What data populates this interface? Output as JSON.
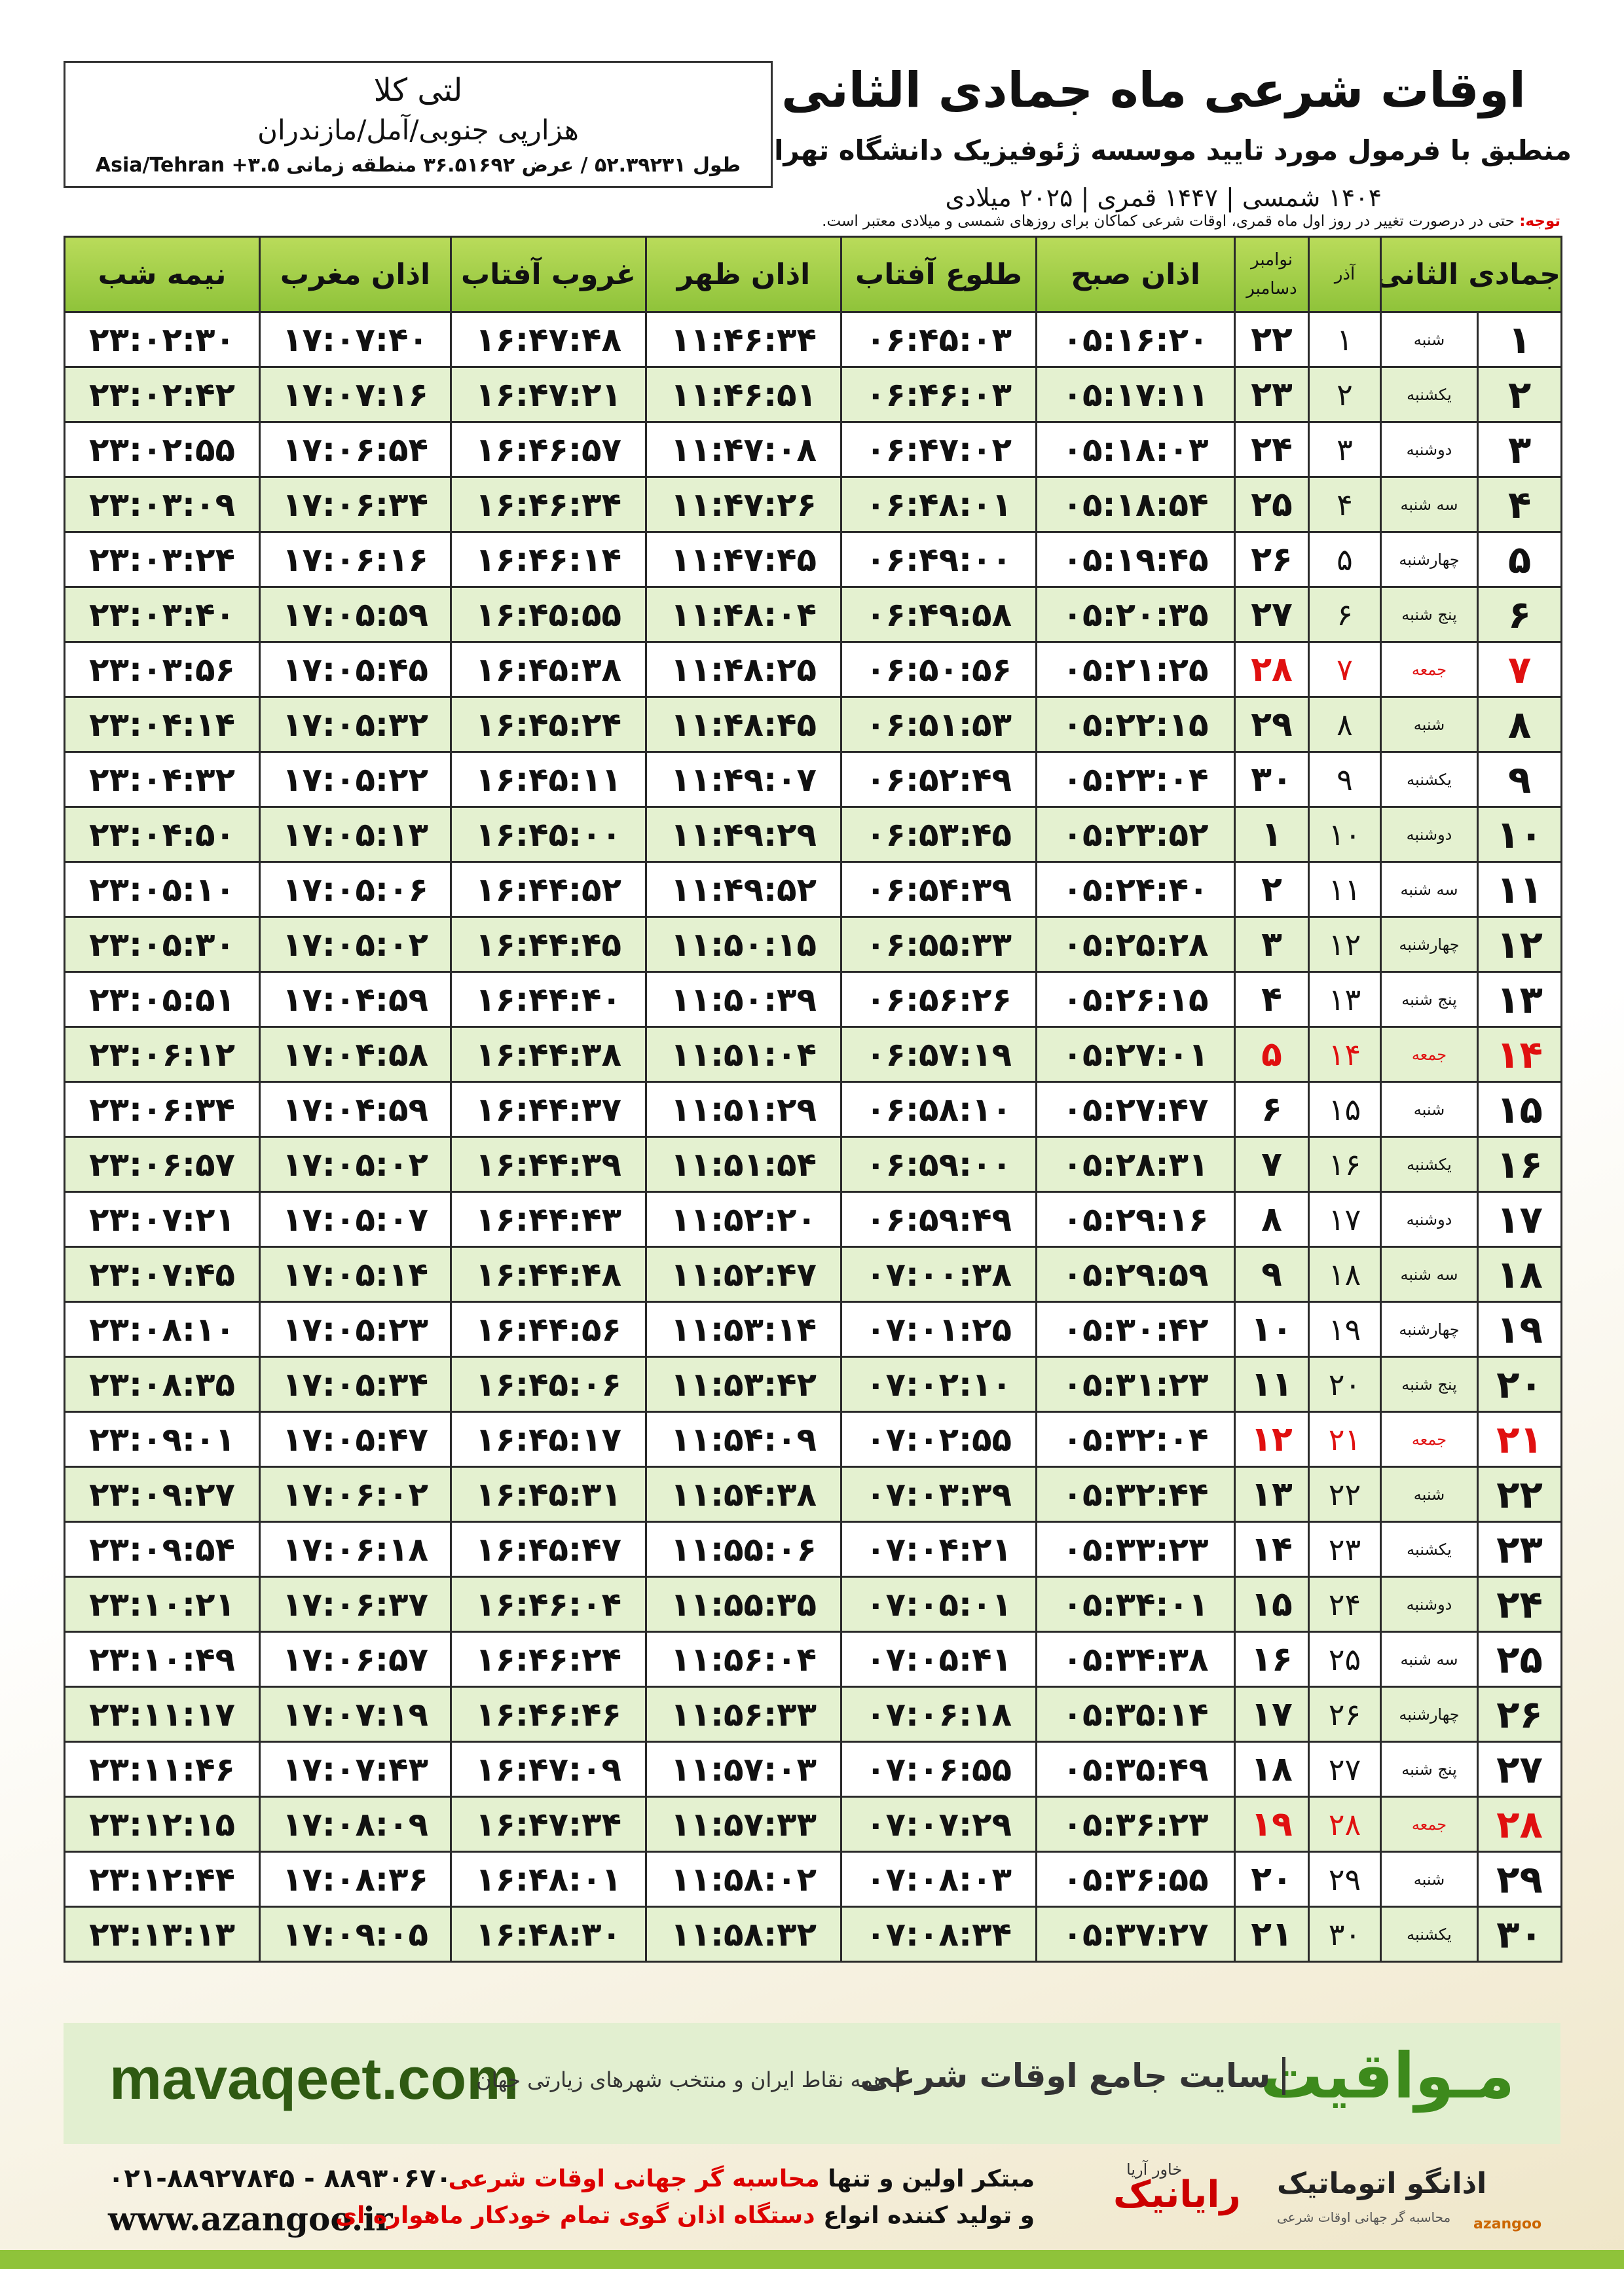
{
  "header": {
    "title": "اوقات شرعی ماه جمادی الثانی",
    "subtitle": "منطبق با فرمول مورد تایید موسسه ژئوفیزیک دانشگاه تهران",
    "dates": "۱۴۰۴ شمسی | ۱۴۴۷ قمری | ۲۰۲۵ میلادی"
  },
  "location": {
    "name": "لتی کلا",
    "region": "هزارپی جنوبی/آمل/مازندران",
    "coords": "طول ۵۲.۳۹۲۳۱ / عرض ۳۶.۵۱۶۹۲ منطقه زمانی ۳.۵+ Asia/Tehran"
  },
  "note": {
    "label": "توجه:",
    "text": "حتی در درصورت تغییر در روز اول ماه قمری، اوقات شرعی کماکان برای روزهای شمسی و میلادی معتبر است."
  },
  "table": {
    "hijri": "جمادی الثانی",
    "azar": "آذر",
    "gregorian": [
      "نوامبر",
      "دسامبر"
    ],
    "times": [
      "اذان صبح",
      "طلوع آفتاب",
      "اذان ظهر",
      "غروب آفتاب",
      "اذان مغرب",
      "نیمه شب"
    ],
    "rows": [
      [
        "۱",
        "شنبه",
        "۱",
        "۲۲",
        "۰۵:۱۶:۲۰",
        "۰۶:۴۵:۰۳",
        "۱۱:۴۶:۳۴",
        "۱۶:۴۷:۴۸",
        "۱۷:۰۷:۴۰",
        "۲۳:۰۲:۳۰"
      ],
      [
        "۲",
        "یکشنبه",
        "۲",
        "۲۳",
        "۰۵:۱۷:۱۱",
        "۰۶:۴۶:۰۳",
        "۱۱:۴۶:۵۱",
        "۱۶:۴۷:۲۱",
        "۱۷:۰۷:۱۶",
        "۲۳:۰۲:۴۲"
      ],
      [
        "۳",
        "دوشنبه",
        "۳",
        "۲۴",
        "۰۵:۱۸:۰۳",
        "۰۶:۴۷:۰۲",
        "۱۱:۴۷:۰۸",
        "۱۶:۴۶:۵۷",
        "۱۷:۰۶:۵۴",
        "۲۳:۰۲:۵۵"
      ],
      [
        "۴",
        "سه شنبه",
        "۴",
        "۲۵",
        "۰۵:۱۸:۵۴",
        "۰۶:۴۸:۰۱",
        "۱۱:۴۷:۲۶",
        "۱۶:۴۶:۳۴",
        "۱۷:۰۶:۳۴",
        "۲۳:۰۳:۰۹"
      ],
      [
        "۵",
        "چهارشنبه",
        "۵",
        "۲۶",
        "۰۵:۱۹:۴۵",
        "۰۶:۴۹:۰۰",
        "۱۱:۴۷:۴۵",
        "۱۶:۴۶:۱۴",
        "۱۷:۰۶:۱۶",
        "۲۳:۰۳:۲۴"
      ],
      [
        "۶",
        "پنج شنبه",
        "۶",
        "۲۷",
        "۰۵:۲۰:۳۵",
        "۰۶:۴۹:۵۸",
        "۱۱:۴۸:۰۴",
        "۱۶:۴۵:۵۵",
        "۱۷:۰۵:۵۹",
        "۲۳:۰۳:۴۰"
      ],
      [
        "۷",
        "جمعه",
        "۷",
        "۲۸",
        "۰۵:۲۱:۲۵",
        "۰۶:۵۰:۵۶",
        "۱۱:۴۸:۲۵",
        "۱۶:۴۵:۳۸",
        "۱۷:۰۵:۴۵",
        "۲۳:۰۳:۵۶"
      ],
      [
        "۸",
        "شنبه",
        "۸",
        "۲۹",
        "۰۵:۲۲:۱۵",
        "۰۶:۵۱:۵۳",
        "۱۱:۴۸:۴۵",
        "۱۶:۴۵:۲۴",
        "۱۷:۰۵:۳۲",
        "۲۳:۰۴:۱۴"
      ],
      [
        "۹",
        "یکشنبه",
        "۹",
        "۳۰",
        "۰۵:۲۳:۰۴",
        "۰۶:۵۲:۴۹",
        "۱۱:۴۹:۰۷",
        "۱۶:۴۵:۱۱",
        "۱۷:۰۵:۲۲",
        "۲۳:۰۴:۳۲"
      ],
      [
        "۱۰",
        "دوشنبه",
        "۱۰",
        "۱",
        "۰۵:۲۳:۵۲",
        "۰۶:۵۳:۴۵",
        "۱۱:۴۹:۲۹",
        "۱۶:۴۵:۰۰",
        "۱۷:۰۵:۱۳",
        "۲۳:۰۴:۵۰"
      ],
      [
        "۱۱",
        "سه شنبه",
        "۱۱",
        "۲",
        "۰۵:۲۴:۴۰",
        "۰۶:۵۴:۳۹",
        "۱۱:۴۹:۵۲",
        "۱۶:۴۴:۵۲",
        "۱۷:۰۵:۰۶",
        "۲۳:۰۵:۱۰"
      ],
      [
        "۱۲",
        "چهارشنبه",
        "۱۲",
        "۳",
        "۰۵:۲۵:۲۸",
        "۰۶:۵۵:۳۳",
        "۱۱:۵۰:۱۵",
        "۱۶:۴۴:۴۵",
        "۱۷:۰۵:۰۲",
        "۲۳:۰۵:۳۰"
      ],
      [
        "۱۳",
        "پنج شنبه",
        "۱۳",
        "۴",
        "۰۵:۲۶:۱۵",
        "۰۶:۵۶:۲۶",
        "۱۱:۵۰:۳۹",
        "۱۶:۴۴:۴۰",
        "۱۷:۰۴:۵۹",
        "۲۳:۰۵:۵۱"
      ],
      [
        "۱۴",
        "جمعه",
        "۱۴",
        "۵",
        "۰۵:۲۷:۰۱",
        "۰۶:۵۷:۱۹",
        "۱۱:۵۱:۰۴",
        "۱۶:۴۴:۳۸",
        "۱۷:۰۴:۵۸",
        "۲۳:۰۶:۱۲"
      ],
      [
        "۱۵",
        "شنبه",
        "۱۵",
        "۶",
        "۰۵:۲۷:۴۷",
        "۰۶:۵۸:۱۰",
        "۱۱:۵۱:۲۹",
        "۱۶:۴۴:۳۷",
        "۱۷:۰۴:۵۹",
        "۲۳:۰۶:۳۴"
      ],
      [
        "۱۶",
        "یکشنبه",
        "۱۶",
        "۷",
        "۰۵:۲۸:۳۱",
        "۰۶:۵۹:۰۰",
        "۱۱:۵۱:۵۴",
        "۱۶:۴۴:۳۹",
        "۱۷:۰۵:۰۲",
        "۲۳:۰۶:۵۷"
      ],
      [
        "۱۷",
        "دوشنبه",
        "۱۷",
        "۸",
        "۰۵:۲۹:۱۶",
        "۰۶:۵۹:۴۹",
        "۱۱:۵۲:۲۰",
        "۱۶:۴۴:۴۳",
        "۱۷:۰۵:۰۷",
        "۲۳:۰۷:۲۱"
      ],
      [
        "۱۸",
        "سه شنبه",
        "۱۸",
        "۹",
        "۰۵:۲۹:۵۹",
        "۰۷:۰۰:۳۸",
        "۱۱:۵۲:۴۷",
        "۱۶:۴۴:۴۸",
        "۱۷:۰۵:۱۴",
        "۲۳:۰۷:۴۵"
      ],
      [
        "۱۹",
        "چهارشنبه",
        "۱۹",
        "۱۰",
        "۰۵:۳۰:۴۲",
        "۰۷:۰۱:۲۵",
        "۱۱:۵۳:۱۴",
        "۱۶:۴۴:۵۶",
        "۱۷:۰۵:۲۳",
        "۲۳:۰۸:۱۰"
      ],
      [
        "۲۰",
        "پنج شنبه",
        "۲۰",
        "۱۱",
        "۰۵:۳۱:۲۳",
        "۰۷:۰۲:۱۰",
        "۱۱:۵۳:۴۲",
        "۱۶:۴۵:۰۶",
        "۱۷:۰۵:۳۴",
        "۲۳:۰۸:۳۵"
      ],
      [
        "۲۱",
        "جمعه",
        "۲۱",
        "۱۲",
        "۰۵:۳۲:۰۴",
        "۰۷:۰۲:۵۵",
        "۱۱:۵۴:۰۹",
        "۱۶:۴۵:۱۷",
        "۱۷:۰۵:۴۷",
        "۲۳:۰۹:۰۱"
      ],
      [
        "۲۲",
        "شنبه",
        "۲۲",
        "۱۳",
        "۰۵:۳۲:۴۴",
        "۰۷:۰۳:۳۹",
        "۱۱:۵۴:۳۸",
        "۱۶:۴۵:۳۱",
        "۱۷:۰۶:۰۲",
        "۲۳:۰۹:۲۷"
      ],
      [
        "۲۳",
        "یکشنبه",
        "۲۳",
        "۱۴",
        "۰۵:۳۳:۲۳",
        "۰۷:۰۴:۲۱",
        "۱۱:۵۵:۰۶",
        "۱۶:۴۵:۴۷",
        "۱۷:۰۶:۱۸",
        "۲۳:۰۹:۵۴"
      ],
      [
        "۲۴",
        "دوشنبه",
        "۲۴",
        "۱۵",
        "۰۵:۳۴:۰۱",
        "۰۷:۰۵:۰۱",
        "۱۱:۵۵:۳۵",
        "۱۶:۴۶:۰۴",
        "۱۷:۰۶:۳۷",
        "۲۳:۱۰:۲۱"
      ],
      [
        "۲۵",
        "سه شنبه",
        "۲۵",
        "۱۶",
        "۰۵:۳۴:۳۸",
        "۰۷:۰۵:۴۱",
        "۱۱:۵۶:۰۴",
        "۱۶:۴۶:۲۴",
        "۱۷:۰۶:۵۷",
        "۲۳:۱۰:۴۹"
      ],
      [
        "۲۶",
        "چهارشنبه",
        "۲۶",
        "۱۷",
        "۰۵:۳۵:۱۴",
        "۰۷:۰۶:۱۸",
        "۱۱:۵۶:۳۳",
        "۱۶:۴۶:۴۶",
        "۱۷:۰۷:۱۹",
        "۲۳:۱۱:۱۷"
      ],
      [
        "۲۷",
        "پنج شنبه",
        "۲۷",
        "۱۸",
        "۰۵:۳۵:۴۹",
        "۰۷:۰۶:۵۵",
        "۱۱:۵۷:۰۳",
        "۱۶:۴۷:۰۹",
        "۱۷:۰۷:۴۳",
        "۲۳:۱۱:۴۶"
      ],
      [
        "۲۸",
        "جمعه",
        "۲۸",
        "۱۹",
        "۰۵:۳۶:۲۳",
        "۰۷:۰۷:۲۹",
        "۱۱:۵۷:۳۳",
        "۱۶:۴۷:۳۴",
        "۱۷:۰۸:۰۹",
        "۲۳:۱۲:۱۵"
      ],
      [
        "۲۹",
        "شنبه",
        "۲۹",
        "۲۰",
        "۰۵:۳۶:۵۵",
        "۰۷:۰۸:۰۳",
        "۱۱:۵۸:۰۲",
        "۱۶:۴۸:۰۱",
        "۱۷:۰۸:۳۶",
        "۲۳:۱۲:۴۴"
      ],
      [
        "۳۰",
        "یکشنبه",
        "۳۰",
        "۲۱",
        "۰۵:۳۷:۲۷",
        "۰۷:۰۸:۳۴",
        "۱۱:۵۸:۳۲",
        "۱۶:۴۸:۳۰",
        "۱۷:۰۹:۰۵",
        "۲۳:۱۳:۱۳"
      ]
    ]
  },
  "footer": {
    "site": "mavaqeet.com",
    "brand": "مـواقیت",
    "tagline": "سایت جامع اوقات شرعی",
    "coverage": "همه نقاط ایران و منتخب شهرهای زیارتی جهان"
  },
  "credits": {
    "phone": "۰۲۱-۸۸۹۲۷۸۴۵ - ۸۸۹۳۰۶۷۰",
    "url": "www.azangoo.ir",
    "line1": "مبتکر اولین و تنها",
    "line1_highlight": "محاسبه گر جهانی اوقات شرعی",
    "line2": "و تولید کننده انواع",
    "line2_highlight": "دستگاه اذان گوی تمام خودکار ماهواره ای",
    "logo1": "رایانیک",
    "logo1_sub": "خاور آریا",
    "logo2": "اذانگو اتوماتیک",
    "logo2_sub": "محاسبه گر جهانی اوقات شرعی",
    "logo2_latin": "azangoo"
  }
}
